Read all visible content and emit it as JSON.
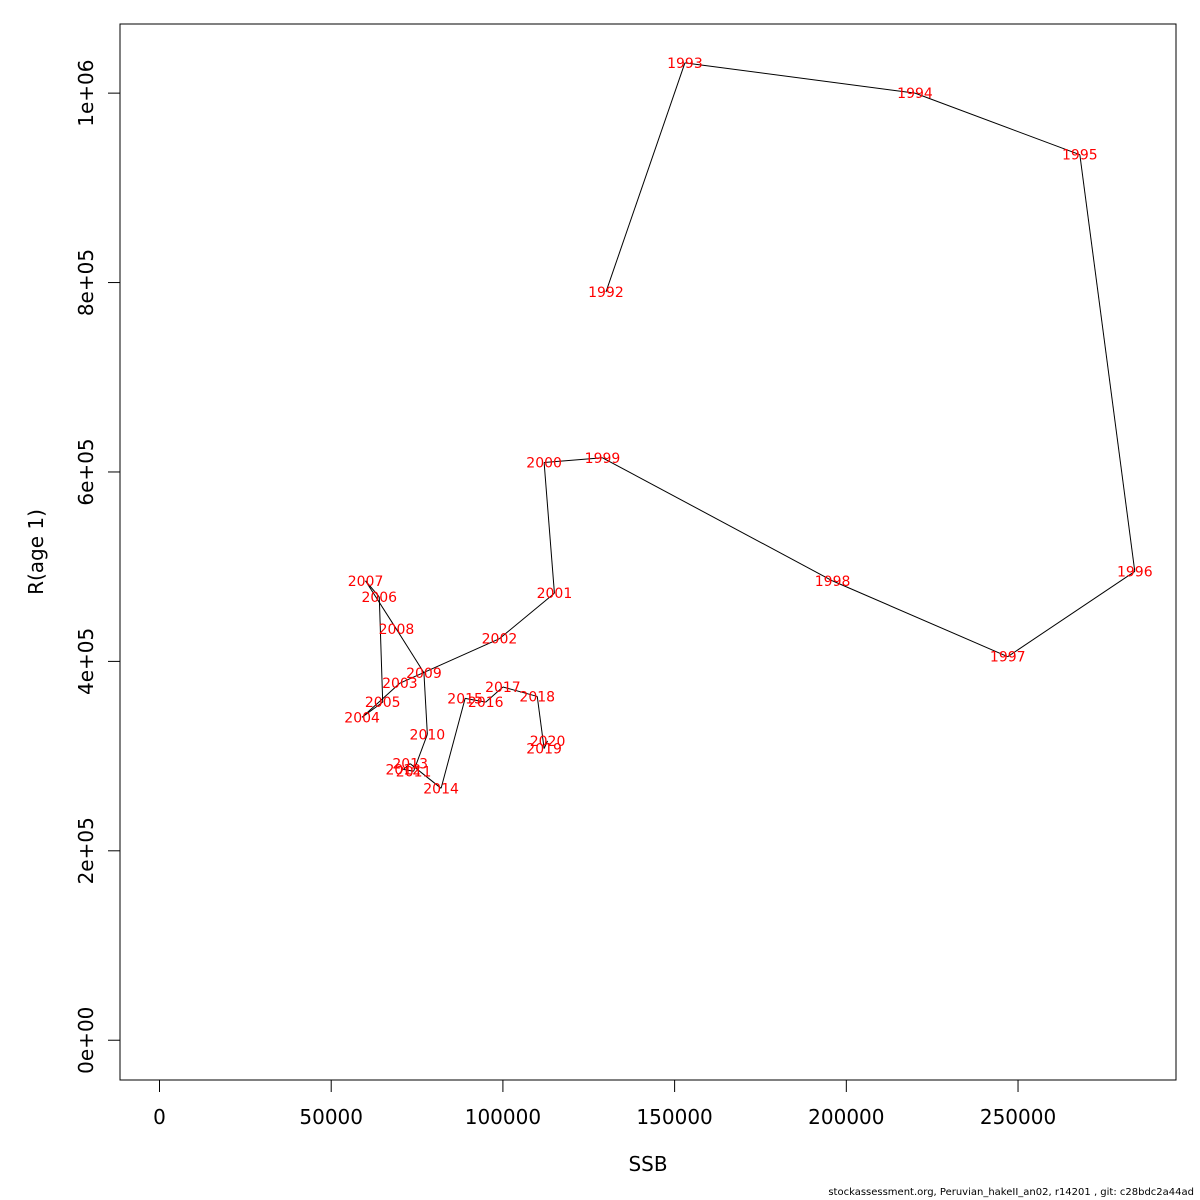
{
  "caption": "stockassessment.org, Peruvian_hakeII_an02, r14201 , git: c28bdc2a44ad",
  "chart_data": {
    "type": "line",
    "xlabel": "SSB",
    "ylabel": "R(age 1)",
    "xlim": [
      -11500,
      296000
    ],
    "ylim": [
      -42000,
      1073000
    ],
    "x_ticks": [
      0,
      50000,
      100000,
      150000,
      200000,
      250000
    ],
    "x_tick_labels": [
      "0",
      "50000",
      "100000",
      "150000",
      "200000",
      "250000"
    ],
    "y_ticks": [
      0,
      200000,
      400000,
      600000,
      800000,
      1000000
    ],
    "y_tick_labels": [
      "0e+00",
      "2e+05",
      "4e+05",
      "6e+05",
      "8e+05",
      "1e+06"
    ],
    "grid": false,
    "line_color": "#000000",
    "label_color": "#ff0000",
    "points": [
      {
        "label": "1992",
        "x": 130000,
        "y": 790000
      },
      {
        "label": "1993",
        "x": 153000,
        "y": 1032000
      },
      {
        "label": "1994",
        "x": 220000,
        "y": 1000000
      },
      {
        "label": "1995",
        "x": 268000,
        "y": 935000
      },
      {
        "label": "1996",
        "x": 284000,
        "y": 495000
      },
      {
        "label": "1997",
        "x": 247000,
        "y": 405000
      },
      {
        "label": "1998",
        "x": 196000,
        "y": 485000
      },
      {
        "label": "1999",
        "x": 129000,
        "y": 615000
      },
      {
        "label": "2000",
        "x": 112000,
        "y": 610000
      },
      {
        "label": "2001",
        "x": 115000,
        "y": 472000
      },
      {
        "label": "2002",
        "x": 99000,
        "y": 424000
      },
      {
        "label": "2003",
        "x": 70000,
        "y": 377000
      },
      {
        "label": "2004",
        "x": 59000,
        "y": 341000
      },
      {
        "label": "2005",
        "x": 65000,
        "y": 357000
      },
      {
        "label": "2006",
        "x": 64000,
        "y": 468000
      },
      {
        "label": "2007",
        "x": 60000,
        "y": 485000
      },
      {
        "label": "2008",
        "x": 69000,
        "y": 434000
      },
      {
        "label": "2009",
        "x": 77000,
        "y": 388000
      },
      {
        "label": "2010",
        "x": 78000,
        "y": 323000
      },
      {
        "label": "2011",
        "x": 74000,
        "y": 284000
      },
      {
        "label": "2012",
        "x": 71000,
        "y": 286000
      },
      {
        "label": "2013",
        "x": 73000,
        "y": 292000
      },
      {
        "label": "2014",
        "x": 82000,
        "y": 266000
      },
      {
        "label": "2015",
        "x": 89000,
        "y": 361000
      },
      {
        "label": "2016",
        "x": 95000,
        "y": 357000
      },
      {
        "label": "2017",
        "x": 100000,
        "y": 373000
      },
      {
        "label": "2018",
        "x": 110000,
        "y": 363000
      },
      {
        "label": "2019",
        "x": 112000,
        "y": 308000
      },
      {
        "label": "2020",
        "x": 113000,
        "y": 316000
      }
    ]
  }
}
